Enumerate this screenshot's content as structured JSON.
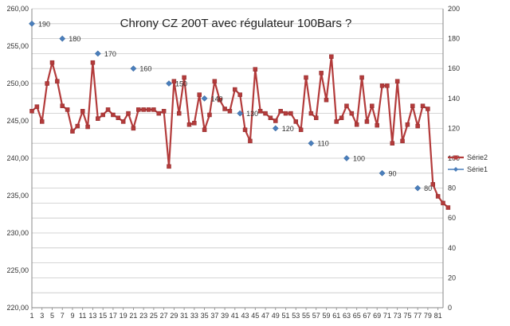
{
  "chart_data": {
    "type": "line",
    "title": "Chrony CZ 200T avec régulateur 100Bars ?",
    "x": {
      "min": 1,
      "max": 82,
      "tick_labels": [
        "1",
        "3",
        "5",
        "7",
        "9",
        "11",
        "13",
        "15",
        "17",
        "19",
        "21",
        "23",
        "25",
        "27",
        "29",
        "31",
        "33",
        "35",
        "37",
        "39",
        "41",
        "43",
        "45",
        "47",
        "49",
        "51",
        "53",
        "55",
        "57",
        "59",
        "61",
        "63",
        "65",
        "67",
        "69",
        "71",
        "73",
        "75",
        "77",
        "79",
        "81"
      ]
    },
    "y_left": {
      "min": 220,
      "max": 260,
      "step": 5,
      "tick_labels": [
        "220,00",
        "225,00",
        "230,00",
        "235,00",
        "240,00",
        "245,00",
        "250,00",
        "255,00",
        "260,00"
      ]
    },
    "y_right": {
      "min": 0,
      "max": 200,
      "step": 20,
      "tick_labels": [
        "0",
        "20",
        "40",
        "60",
        "80",
        "100",
        "120",
        "140",
        "160",
        "180",
        "200"
      ]
    },
    "grid": true,
    "legend_position": "right",
    "series": [
      {
        "name": "Série2",
        "axis": "left",
        "color": "#b33b3b",
        "marker": "square",
        "values": [
          246.3,
          246.9,
          244.9,
          250.0,
          252.8,
          250.3,
          247.0,
          246.5,
          243.6,
          244.3,
          246.3,
          244.2,
          252.8,
          245.3,
          245.8,
          246.5,
          245.8,
          245.4,
          244.9,
          246.0,
          244.0,
          246.5,
          246.5,
          246.5,
          246.5,
          246.0,
          246.3,
          238.9,
          250.3,
          246.0,
          250.8,
          244.5,
          244.7,
          248.5,
          243.8,
          245.8,
          250.3,
          247.8,
          246.6,
          246.3,
          249.2,
          248.5,
          243.8,
          242.3,
          251.9,
          246.3,
          246.0,
          245.4,
          245.0,
          246.3,
          246.0,
          246.0,
          244.9,
          243.8,
          250.8,
          246.0,
          245.4,
          251.4,
          247.8,
          253.6,
          244.9,
          245.4,
          247.0,
          246.0,
          244.5,
          250.8,
          244.9,
          247.0,
          244.4,
          249.7,
          249.7,
          242.0,
          250.3,
          242.3,
          244.5,
          247.0,
          244.3,
          247.0,
          246.6,
          236.5,
          234.9,
          234.0,
          233.4
        ]
      },
      {
        "name": "Série1",
        "axis": "right",
        "color": "#4a7ebb",
        "marker": "diamond",
        "points": [
          {
            "x": 1,
            "y": 190
          },
          {
            "x": 7,
            "y": 180
          },
          {
            "x": 14,
            "y": 170
          },
          {
            "x": 21,
            "y": 160
          },
          {
            "x": 28,
            "y": 150
          },
          {
            "x": 35,
            "y": 140
          },
          {
            "x": 42,
            "y": 130
          },
          {
            "x": 49,
            "y": 120
          },
          {
            "x": 56,
            "y": 110
          },
          {
            "x": 63,
            "y": 100
          },
          {
            "x": 70,
            "y": 90
          },
          {
            "x": 77,
            "y": 80
          }
        ],
        "data_labels": [
          "190",
          "180",
          "170",
          "160",
          "150",
          "140",
          "130",
          "120",
          "110",
          "100",
          "90",
          "80"
        ]
      }
    ]
  }
}
